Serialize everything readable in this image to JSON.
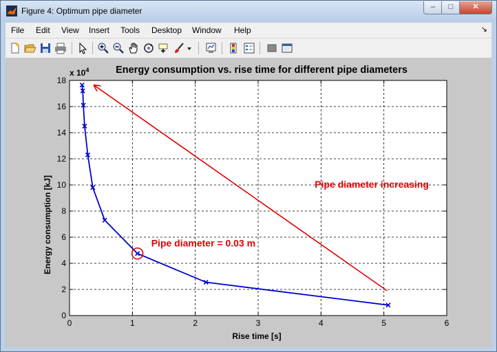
{
  "window": {
    "title": "Figure 4: Optimum pipe diameter",
    "controls": {
      "minimize": "–",
      "maximize": "□",
      "close": "✕"
    }
  },
  "menu": {
    "items": [
      "File",
      "Edit",
      "View",
      "Insert",
      "Tools",
      "Desktop",
      "Window",
      "Help"
    ],
    "overflow_arrow": "↘"
  },
  "toolbar": {
    "icons": [
      "new-figure-icon",
      "open-file-icon",
      "save-icon",
      "print-icon",
      "edit-plot-icon",
      "zoom-in-icon",
      "zoom-out-icon",
      "pan-icon",
      "rotate-3d-icon",
      "data-cursor-icon",
      "brush-icon",
      "link-plot-icon",
      "colorbar-icon",
      "legend-icon",
      "hide-plot-tools-icon",
      "show-plot-tools-icon"
    ]
  },
  "colors": {
    "line": "#0000cc",
    "annotation": "#e00000"
  },
  "chart_data": {
    "type": "line",
    "title": "Energy consumption vs. rise time for different pipe diameters",
    "xlabel": "Rise time [s]",
    "ylabel": "Energy consumption [kJ]",
    "y_multiplier": "x 10",
    "y_multiplier_exp": "4",
    "xlim": [
      0,
      6
    ],
    "ylim": [
      0,
      18
    ],
    "xticks": [
      "0",
      "1",
      "2",
      "3",
      "4",
      "5",
      "6"
    ],
    "yticks": [
      "0",
      "2",
      "4",
      "6",
      "8",
      "10",
      "12",
      "14",
      "16",
      "18"
    ],
    "grid": true,
    "marker": "x",
    "series": [
      {
        "x": [
          0.2,
          0.21,
          0.22,
          0.24,
          0.29,
          0.37,
          0.56,
          1.08,
          2.17,
          5.07
        ],
        "y": [
          17.65,
          17.2,
          16.1,
          14.5,
          12.3,
          9.8,
          7.3,
          4.75,
          2.55,
          0.8
        ]
      }
    ],
    "annotations": [
      {
        "text": "Pipe diameter increasing",
        "x": 3.9,
        "y": 9.8
      },
      {
        "text": "Pipe diameter = 0.03 m",
        "x": 1.3,
        "y": 5.3
      }
    ],
    "arrow": {
      "from": [
        5.05,
        1.9
      ],
      "to": [
        0.4,
        17.6
      ]
    },
    "highlight": {
      "x": 1.08,
      "y": 4.75
    }
  }
}
